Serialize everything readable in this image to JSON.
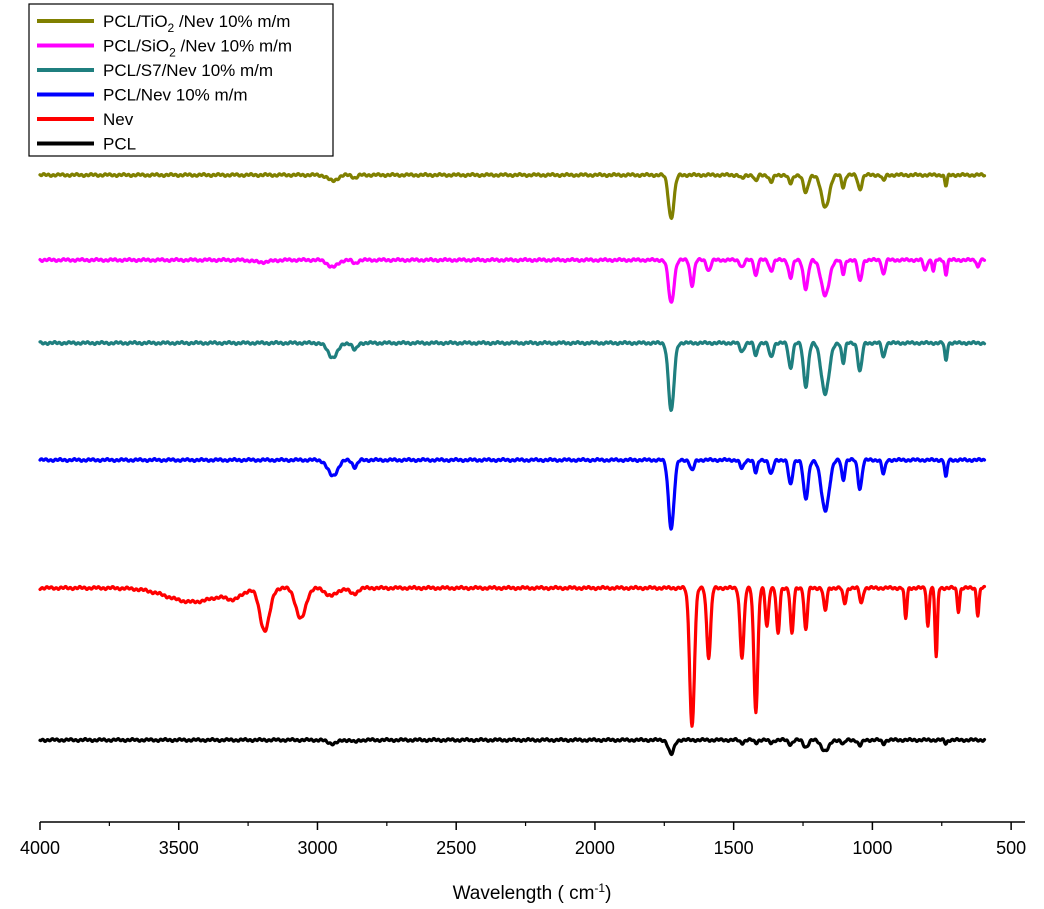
{
  "chart_data": {
    "type": "line",
    "xlabel": "Wavelength  ( cm",
    "xlabel_unit_sup": "-1",
    "xlabel_close": ")",
    "xlim": [
      4000,
      450
    ],
    "x_ticks": [
      "4000",
      "3500",
      "3000",
      "2500",
      "2000",
      "1500",
      "1000",
      "500"
    ],
    "x_tick_values": [
      4000,
      3500,
      3000,
      2500,
      2000,
      1500,
      1000,
      500
    ],
    "y_axis_shown": false,
    "grid": false,
    "legend_position": "top-left",
    "series": [
      {
        "name": "PCL/TiO2/Nev 10% m/m",
        "legend": {
          "pre": "PCL/TiO",
          "sub": "2",
          "post": " /Nev 10% m/m"
        },
        "color": "#808000",
        "baseline": 0.8,
        "peaks": [
          [
            2945,
            0.08,
            25
          ],
          [
            2865,
            0.04,
            12
          ],
          [
            1725,
            0.6,
            14
          ],
          [
            1470,
            0.05,
            10
          ],
          [
            1420,
            0.09,
            8
          ],
          [
            1365,
            0.1,
            10
          ],
          [
            1295,
            0.12,
            10
          ],
          [
            1240,
            0.25,
            12
          ],
          [
            1170,
            0.45,
            20
          ],
          [
            1105,
            0.17,
            8
          ],
          [
            1045,
            0.2,
            10
          ],
          [
            960,
            0.08,
            8
          ],
          [
            735,
            0.15,
            6
          ]
        ]
      },
      {
        "name": "PCL/SiO2/Nev 10% m/m",
        "legend": {
          "pre": "PCL/SiO",
          "sub": "2",
          "post": " /Nev 10% m/m"
        },
        "color": "#ff00ff",
        "baseline": 1.0,
        "peaks": [
          [
            3200,
            0.03,
            40
          ],
          [
            2945,
            0.1,
            25
          ],
          [
            2865,
            0.05,
            12
          ],
          [
            1725,
            0.6,
            14
          ],
          [
            1650,
            0.35,
            10
          ],
          [
            1590,
            0.15,
            10
          ],
          [
            1470,
            0.1,
            10
          ],
          [
            1420,
            0.22,
            8
          ],
          [
            1365,
            0.15,
            10
          ],
          [
            1295,
            0.25,
            10
          ],
          [
            1240,
            0.4,
            12
          ],
          [
            1170,
            0.5,
            20
          ],
          [
            1105,
            0.2,
            8
          ],
          [
            1045,
            0.3,
            10
          ],
          [
            960,
            0.2,
            8
          ],
          [
            810,
            0.15,
            8
          ],
          [
            780,
            0.15,
            6
          ],
          [
            735,
            0.2,
            6
          ],
          [
            620,
            0.1,
            6
          ]
        ]
      },
      {
        "name": "PCL/S7/Nev 10% m/m",
        "legend": {
          "pre": "PCL/S7/Nev 10% m/m",
          "sub": "",
          "post": ""
        },
        "color": "#1f7f7f",
        "baseline": 0.8,
        "peaks": [
          [
            2945,
            0.2,
            25
          ],
          [
            2865,
            0.1,
            12
          ],
          [
            1725,
            0.95,
            14
          ],
          [
            1470,
            0.12,
            10
          ],
          [
            1420,
            0.18,
            8
          ],
          [
            1365,
            0.2,
            10
          ],
          [
            1295,
            0.35,
            10
          ],
          [
            1240,
            0.6,
            12
          ],
          [
            1170,
            0.7,
            20
          ],
          [
            1105,
            0.28,
            8
          ],
          [
            1045,
            0.4,
            10
          ],
          [
            960,
            0.2,
            8
          ],
          [
            735,
            0.25,
            6
          ]
        ]
      },
      {
        "name": "PCL/Nev 10% m/m",
        "legend": {
          "pre": "PCL/Nev 10% m/m",
          "sub": "",
          "post": ""
        },
        "color": "#0000ff",
        "baseline": 0.8,
        "peaks": [
          [
            2945,
            0.22,
            25
          ],
          [
            2865,
            0.1,
            12
          ],
          [
            1725,
            0.95,
            14
          ],
          [
            1650,
            0.15,
            10
          ],
          [
            1470,
            0.12,
            10
          ],
          [
            1420,
            0.18,
            8
          ],
          [
            1365,
            0.2,
            10
          ],
          [
            1295,
            0.35,
            10
          ],
          [
            1240,
            0.55,
            12
          ],
          [
            1170,
            0.7,
            20
          ],
          [
            1105,
            0.28,
            8
          ],
          [
            1045,
            0.4,
            10
          ],
          [
            960,
            0.2,
            8
          ],
          [
            735,
            0.25,
            6
          ]
        ]
      },
      {
        "name": "Nev",
        "legend": {
          "pre": "Nev",
          "sub": "",
          "post": ""
        },
        "color": "#ff0000",
        "baseline": 1.0,
        "peaks": [
          [
            3450,
            0.18,
            130
          ],
          [
            3300,
            0.1,
            40
          ],
          [
            3190,
            0.55,
            25
          ],
          [
            3060,
            0.4,
            25
          ],
          [
            2950,
            0.1,
            30
          ],
          [
            2870,
            0.08,
            20
          ],
          [
            1650,
            1.8,
            12
          ],
          [
            1590,
            0.9,
            10
          ],
          [
            1470,
            0.9,
            10
          ],
          [
            1420,
            1.6,
            10
          ],
          [
            1380,
            0.5,
            8
          ],
          [
            1340,
            0.6,
            8
          ],
          [
            1290,
            0.6,
            8
          ],
          [
            1240,
            0.55,
            8
          ],
          [
            1170,
            0.3,
            8
          ],
          [
            1100,
            0.2,
            8
          ],
          [
            1040,
            0.2,
            8
          ],
          [
            880,
            0.4,
            6
          ],
          [
            800,
            0.5,
            6
          ],
          [
            770,
            0.9,
            6
          ],
          [
            690,
            0.3,
            6
          ],
          [
            620,
            0.35,
            6
          ]
        ]
      },
      {
        "name": "PCL",
        "legend": {
          "pre": "PCL",
          "sub": "",
          "post": ""
        },
        "color": "#000000",
        "baseline": 0.8,
        "peaks": [
          [
            2945,
            0.05,
            25
          ],
          [
            2865,
            0.03,
            12
          ],
          [
            1725,
            0.2,
            14
          ],
          [
            1470,
            0.04,
            10
          ],
          [
            1420,
            0.04,
            8
          ],
          [
            1365,
            0.04,
            10
          ],
          [
            1295,
            0.06,
            10
          ],
          [
            1240,
            0.1,
            12
          ],
          [
            1170,
            0.15,
            20
          ],
          [
            1105,
            0.06,
            8
          ],
          [
            1045,
            0.08,
            10
          ],
          [
            960,
            0.05,
            8
          ],
          [
            735,
            0.05,
            6
          ]
        ]
      }
    ]
  }
}
